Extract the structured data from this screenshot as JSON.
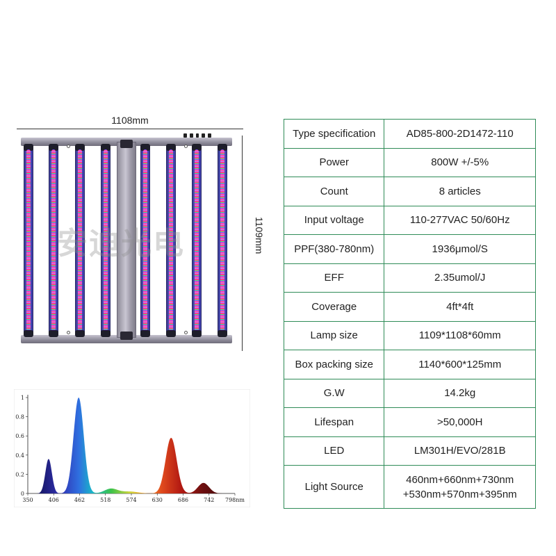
{
  "drawing": {
    "width_label": "1108mm",
    "height_label": "1109mm",
    "watermark": "安迪光电",
    "bar_count": 8
  },
  "spec_table": {
    "rows": [
      {
        "label": "Type specification",
        "value": [
          "AD85-800-2D1472-110"
        ]
      },
      {
        "label": "Power",
        "value": [
          "800W +/-5%"
        ]
      },
      {
        "label": "Count",
        "value": [
          "8 articles"
        ]
      },
      {
        "label": "Input voltage",
        "value": [
          "110-277VAC 50/60Hz"
        ]
      },
      {
        "label": "PPF(380-780nm)",
        "value": [
          "1936μmol/S"
        ]
      },
      {
        "label": "EFF",
        "value": [
          "2.35umol/J"
        ]
      },
      {
        "label": "Coverage",
        "value": [
          "4ft*4ft"
        ]
      },
      {
        "label": "Lamp size",
        "value": [
          "1109*1108*60mm"
        ]
      },
      {
        "label": "Box packing size",
        "value": [
          "1140*600*125mm"
        ]
      },
      {
        "label": "G.W",
        "value": [
          "14.2kg"
        ]
      },
      {
        "label": "Lifespan",
        "value": [
          ">50,000H"
        ]
      },
      {
        "label": "LED",
        "value": [
          "LM301H/EVO/281B"
        ]
      },
      {
        "label": "Light Source",
        "value": [
          "460nm+660nm+730nm",
          "+530nm+570nm+395nm"
        ]
      }
    ],
    "border_color": "#2e8b57"
  },
  "chart_data": {
    "type": "area",
    "title": "",
    "xlabel": "",
    "ylabel": "",
    "xlim": [
      350,
      798
    ],
    "ylim": [
      0,
      1
    ],
    "x_ticks": [
      "350",
      "406",
      "462",
      "518",
      "574",
      "630",
      "686",
      "742",
      "798nm"
    ],
    "y_ticks": [
      "0",
      "0.2",
      "0.4",
      "0.6",
      "0.8",
      "1"
    ],
    "grid": false,
    "peaks": [
      {
        "center": 395,
        "height": 0.36,
        "width": 7
      },
      {
        "center": 460,
        "height": 1.0,
        "width": 11
      },
      {
        "center": 530,
        "height": 0.05,
        "width": 14
      },
      {
        "center": 570,
        "height": 0.02,
        "width": 18
      },
      {
        "center": 660,
        "height": 0.58,
        "width": 12
      },
      {
        "center": 730,
        "height": 0.11,
        "width": 12
      }
    ]
  }
}
